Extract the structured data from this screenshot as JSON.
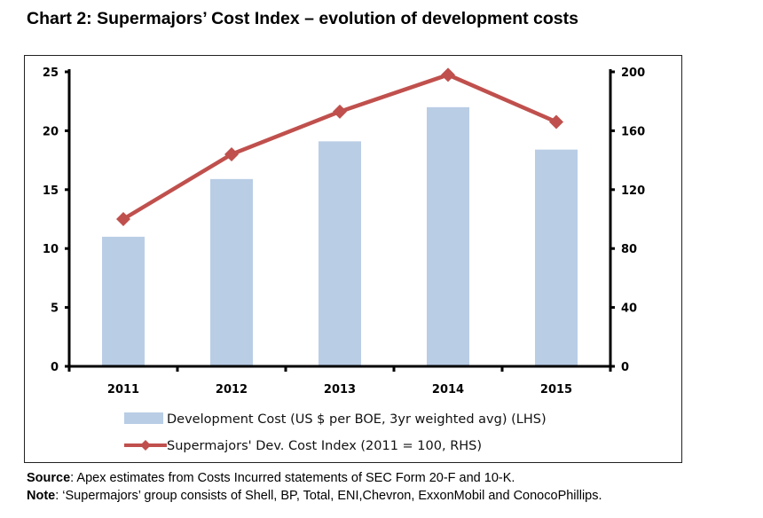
{
  "title": "Chart 2: Supermajors’ Cost Index – evolution of development costs",
  "chart_data": {
    "type": "bar+line",
    "categories": [
      "2011",
      "2012",
      "2013",
      "2014",
      "2015"
    ],
    "series": [
      {
        "name": "Development Cost (US $ per BOE, 3yr weighted avg) (LHS)",
        "type": "bar",
        "axis": "left",
        "values": [
          11.0,
          15.9,
          19.1,
          22.0,
          18.4
        ],
        "color": "#b9cde5"
      },
      {
        "name": "Supermajors' Dev. Cost Index (2011 = 100, RHS)",
        "type": "line",
        "axis": "right",
        "marker": "diamond",
        "values": [
          100,
          144,
          173,
          198,
          166
        ],
        "color": "#c0504d"
      }
    ],
    "y_left": {
      "range": [
        0,
        25
      ],
      "ticks": [
        "0",
        "5",
        "10",
        "15",
        "20",
        "25"
      ]
    },
    "y_right": {
      "range": [
        0,
        200
      ],
      "ticks": [
        "0",
        "40",
        "80",
        "120",
        "160",
        "200"
      ]
    },
    "grid": false,
    "legend_placement": "bottom"
  },
  "footer": {
    "source_label": "Source",
    "source_text": ": Apex estimates from Costs Incurred statements of SEC Form 20-F and 10-K.",
    "note_label": "Note",
    "note_text": ": ‘Supermajors’ group consists of Shell, BP, Total, ENI,Chevron, ExxonMobil and ConocoPhillips."
  }
}
